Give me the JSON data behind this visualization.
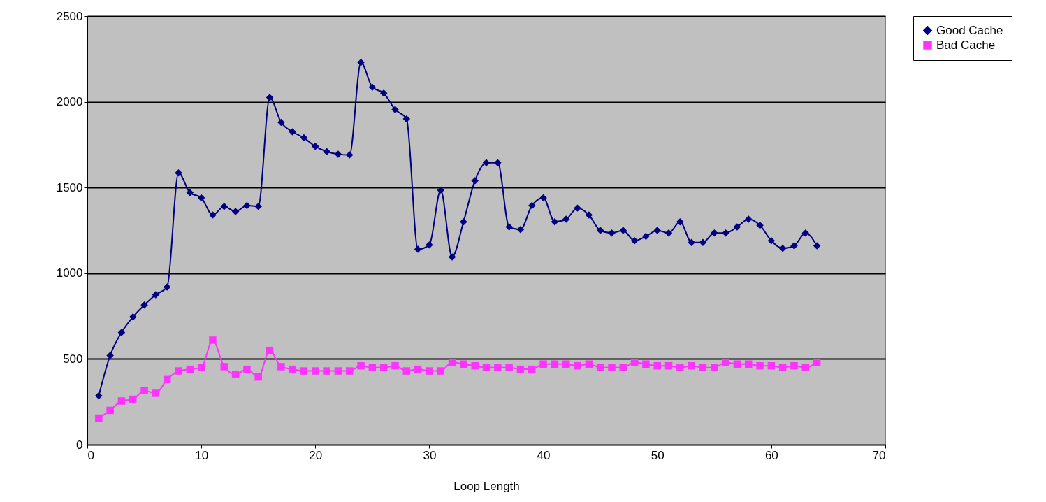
{
  "chart_data": {
    "type": "line",
    "xlabel": "Loop Length",
    "x": [
      1,
      2,
      3,
      4,
      5,
      6,
      7,
      8,
      9,
      10,
      11,
      12,
      13,
      14,
      15,
      16,
      17,
      18,
      19,
      20,
      21,
      22,
      23,
      24,
      25,
      26,
      27,
      28,
      29,
      30,
      31,
      32,
      33,
      34,
      35,
      36,
      37,
      38,
      39,
      40,
      41,
      42,
      43,
      44,
      45,
      46,
      47,
      48,
      49,
      50,
      51,
      52,
      53,
      54,
      55,
      56,
      57,
      58,
      59,
      60,
      61,
      62,
      63,
      64
    ],
    "series": [
      {
        "name": "Good Cache",
        "color": "#000080",
        "marker": "diamond",
        "values": [
          285,
          520,
          655,
          745,
          815,
          875,
          920,
          1585,
          1470,
          1440,
          1340,
          1390,
          1360,
          1395,
          1390,
          2025,
          1880,
          1825,
          1790,
          1740,
          1710,
          1695,
          1690,
          2230,
          2085,
          2050,
          1955,
          1900,
          1140,
          1165,
          1485,
          1095,
          1300,
          1540,
          1645,
          1645,
          1270,
          1255,
          1395,
          1440,
          1300,
          1315,
          1380,
          1340,
          1250,
          1235,
          1250,
          1190,
          1215,
          1250,
          1235,
          1300,
          1180,
          1180,
          1235,
          1235,
          1270,
          1315,
          1280,
          1190,
          1145,
          1160,
          1235,
          1160
        ]
      },
      {
        "name": "Bad Cache",
        "color": "#ff33ff",
        "marker": "square",
        "values": [
          155,
          200,
          255,
          265,
          315,
          300,
          380,
          430,
          440,
          450,
          610,
          455,
          410,
          440,
          395,
          550,
          455,
          440,
          430,
          430,
          430,
          430,
          430,
          460,
          450,
          450,
          460,
          430,
          440,
          430,
          430,
          480,
          470,
          460,
          450,
          450,
          450,
          440,
          440,
          470,
          470,
          470,
          460,
          470,
          450,
          450,
          450,
          480,
          470,
          460,
          460,
          450,
          460,
          450,
          450,
          480,
          470,
          470,
          460,
          460,
          450,
          460,
          450,
          480
        ]
      }
    ],
    "xlim": [
      0,
      70
    ],
    "xticks": [
      0,
      10,
      20,
      30,
      40,
      50,
      60,
      70
    ],
    "ylim": [
      0,
      2500
    ],
    "yticks": [
      0,
      500,
      1000,
      1500,
      2000,
      2500
    ],
    "grid": "y",
    "legend": "right"
  }
}
